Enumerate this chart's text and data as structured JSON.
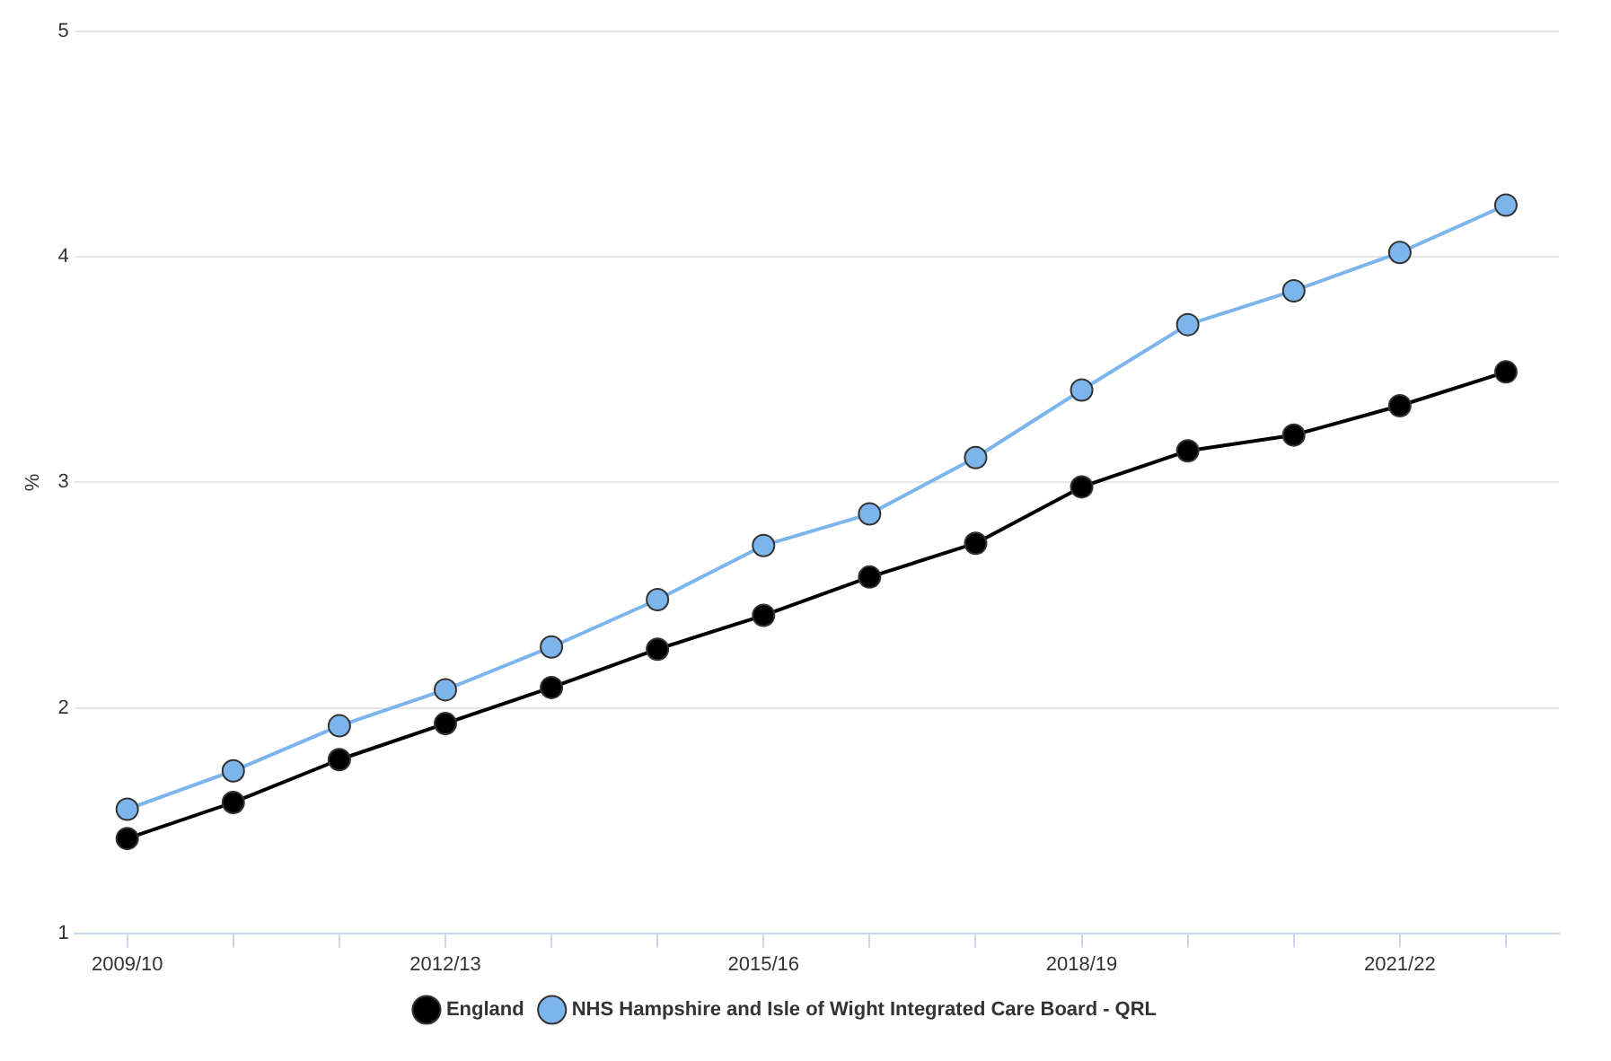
{
  "chart_data": {
    "type": "line",
    "ylabel": "%",
    "categories": [
      "2009/10",
      null,
      null,
      "2012/13",
      null,
      null,
      "2015/16",
      null,
      null,
      "2018/19",
      null,
      null,
      "2021/22",
      null
    ],
    "series": [
      {
        "name": "England",
        "color": "#000000",
        "values": [
          1.42,
          1.58,
          1.77,
          1.93,
          2.09,
          2.26,
          2.41,
          2.58,
          2.73,
          2.98,
          3.14,
          3.21,
          3.34,
          3.49
        ]
      },
      {
        "name": "NHS Hampshire and Isle of Wight Integrated Care Board - QRL",
        "color": "#7cb5ec",
        "values": [
          1.55,
          1.72,
          1.92,
          2.08,
          2.27,
          2.48,
          2.72,
          2.86,
          3.11,
          3.41,
          3.7,
          3.85,
          4.02,
          4.23
        ]
      }
    ],
    "ylim": [
      1,
      5
    ],
    "yticks": [
      1,
      2,
      3,
      4,
      5
    ],
    "grid": "y",
    "legend": "bottom",
    "marker": "circle",
    "line_style": "solid"
  }
}
